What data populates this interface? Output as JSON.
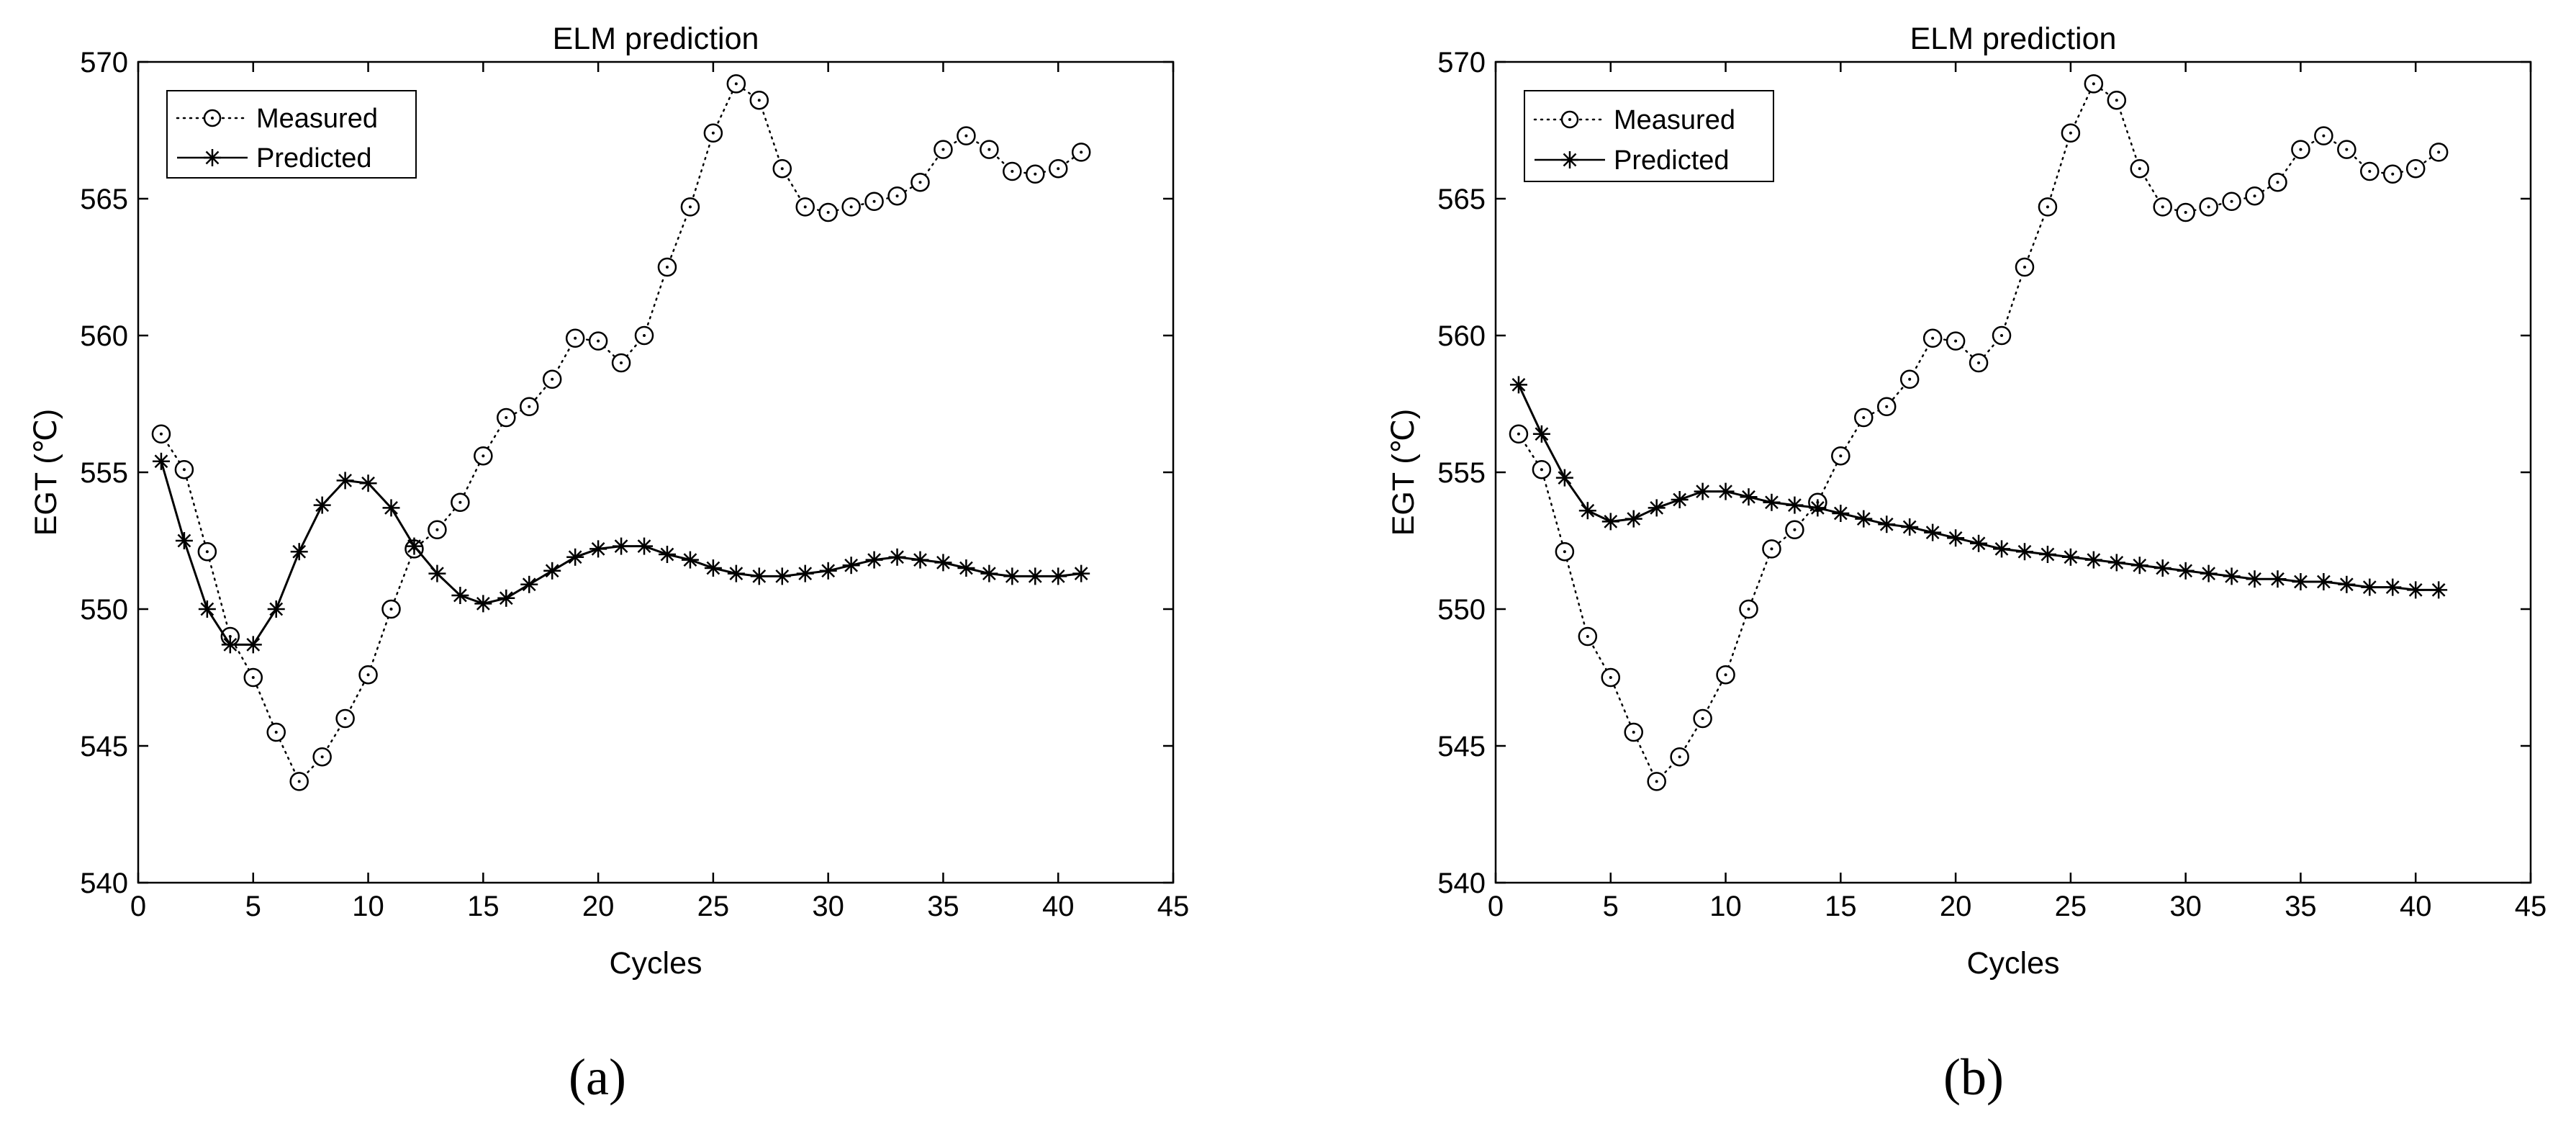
{
  "chart_data": [
    {
      "type": "line",
      "title": "ELM prediction",
      "xlabel": "Cycles",
      "ylabel": "EGT (℃)",
      "panel_label": "(a)",
      "xlim": [
        0,
        45
      ],
      "ylim": [
        540,
        570
      ],
      "xticks": [
        0,
        5,
        10,
        15,
        20,
        25,
        30,
        35,
        40,
        45
      ],
      "yticks": [
        540,
        545,
        550,
        555,
        560,
        565,
        570
      ],
      "grid": false,
      "legend_position": "top-left",
      "x": [
        1,
        2,
        3,
        4,
        5,
        6,
        7,
        8,
        9,
        10,
        11,
        12,
        13,
        14,
        15,
        16,
        17,
        18,
        19,
        20,
        21,
        22,
        23,
        24,
        25,
        26,
        27,
        28,
        29,
        30,
        31,
        32,
        33,
        34,
        35,
        36,
        37,
        38,
        39,
        40,
        41
      ],
      "series": [
        {
          "name": "Measured",
          "style": "dotted-circle",
          "values": [
            556.4,
            555.1,
            552.1,
            549.0,
            547.5,
            545.5,
            543.7,
            544.6,
            546.0,
            547.6,
            550.0,
            552.2,
            552.9,
            553.9,
            555.6,
            557.0,
            557.4,
            558.4,
            559.9,
            559.8,
            559.0,
            560.0,
            562.5,
            564.7,
            567.4,
            569.2,
            568.6,
            566.1,
            564.7,
            564.5,
            564.7,
            564.9,
            565.1,
            565.6,
            566.8,
            567.3,
            566.8,
            566.0,
            565.9,
            566.1,
            566.7
          ]
        },
        {
          "name": "Predicted",
          "style": "solid-asterisk",
          "values": [
            555.4,
            552.5,
            550.0,
            548.7,
            548.7,
            550.0,
            552.1,
            553.8,
            554.7,
            554.6,
            553.7,
            552.3,
            551.3,
            550.5,
            550.2,
            550.4,
            550.9,
            551.4,
            551.9,
            552.2,
            552.3,
            552.3,
            552.0,
            551.8,
            551.5,
            551.3,
            551.2,
            551.2,
            551.3,
            551.4,
            551.6,
            551.8,
            551.9,
            551.8,
            551.7,
            551.5,
            551.3,
            551.2,
            551.2,
            551.2,
            551.3
          ]
        }
      ]
    },
    {
      "type": "line",
      "title": "ELM prediction",
      "xlabel": "Cycles",
      "ylabel": "EGT (℃)",
      "panel_label": "(b)",
      "xlim": [
        0,
        45
      ],
      "ylim": [
        540,
        570
      ],
      "xticks": [
        0,
        5,
        10,
        15,
        20,
        25,
        30,
        35,
        40,
        45
      ],
      "yticks": [
        540,
        545,
        550,
        555,
        560,
        565,
        570
      ],
      "grid": false,
      "legend_position": "top-left",
      "x": [
        1,
        2,
        3,
        4,
        5,
        6,
        7,
        8,
        9,
        10,
        11,
        12,
        13,
        14,
        15,
        16,
        17,
        18,
        19,
        20,
        21,
        22,
        23,
        24,
        25,
        26,
        27,
        28,
        29,
        30,
        31,
        32,
        33,
        34,
        35,
        36,
        37,
        38,
        39,
        40,
        41
      ],
      "series": [
        {
          "name": "Measured",
          "style": "dotted-circle",
          "values": [
            556.4,
            555.1,
            552.1,
            549.0,
            547.5,
            545.5,
            543.7,
            544.6,
            546.0,
            547.6,
            550.0,
            552.2,
            552.9,
            553.9,
            555.6,
            557.0,
            557.4,
            558.4,
            559.9,
            559.8,
            559.0,
            560.0,
            562.5,
            564.7,
            567.4,
            569.2,
            568.6,
            566.1,
            564.7,
            564.5,
            564.7,
            564.9,
            565.1,
            565.6,
            566.8,
            567.3,
            566.8,
            566.0,
            565.9,
            566.1,
            566.7
          ]
        },
        {
          "name": "Predicted",
          "style": "solid-asterisk",
          "values": [
            558.2,
            556.4,
            554.8,
            553.6,
            553.2,
            553.3,
            553.7,
            554.0,
            554.3,
            554.3,
            554.1,
            553.9,
            553.8,
            553.7,
            553.5,
            553.3,
            553.1,
            553.0,
            552.8,
            552.6,
            552.4,
            552.2,
            552.1,
            552.0,
            551.9,
            551.8,
            551.7,
            551.6,
            551.5,
            551.4,
            551.3,
            551.2,
            551.1,
            551.1,
            551.0,
            551.0,
            550.9,
            550.8,
            550.8,
            550.7,
            550.7
          ]
        }
      ]
    }
  ]
}
